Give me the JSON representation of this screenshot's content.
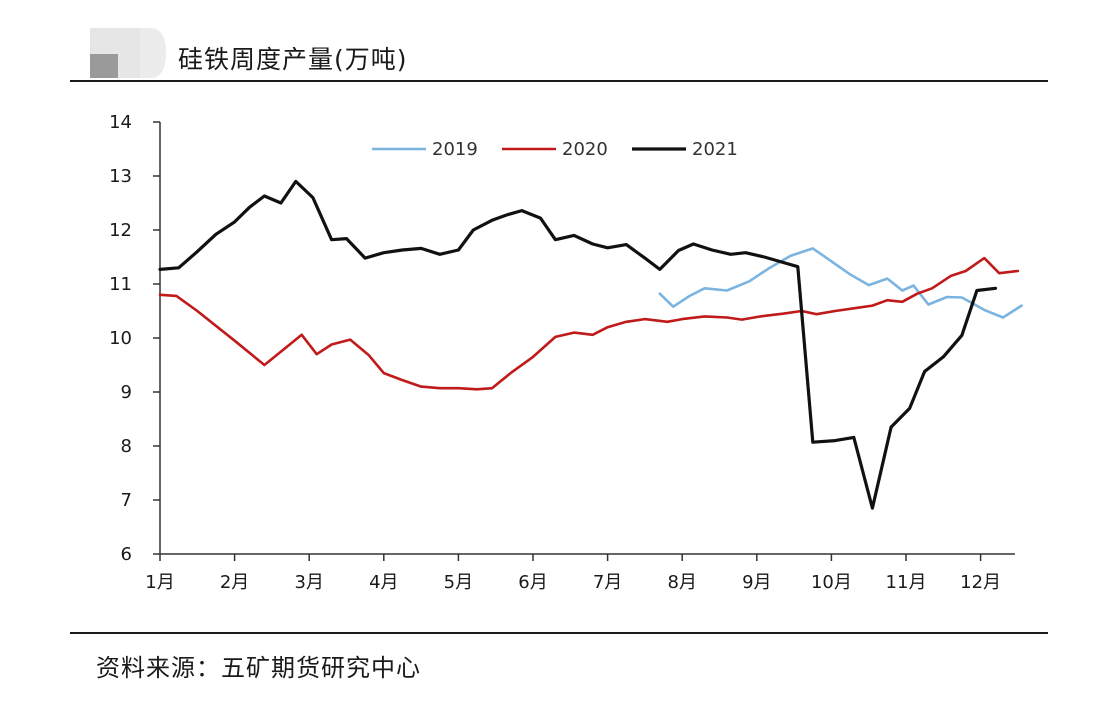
{
  "header": {
    "title": "硅铁周度产量(万吨)"
  },
  "footer": {
    "source": "资料来源：五矿期货研究中心"
  },
  "chart_data": {
    "type": "line",
    "title": "硅铁周度产量(万吨)",
    "xlabel": "",
    "ylabel": "",
    "ylim": [
      6,
      14
    ],
    "yticks": [
      6,
      7,
      8,
      9,
      10,
      11,
      12,
      13,
      14
    ],
    "xticks": [
      "1月",
      "2月",
      "3月",
      "4月",
      "5月",
      "6月",
      "7月",
      "8月",
      "9月",
      "10月",
      "11月",
      "12月"
    ],
    "x_unit": "month (1 = start of 1月)",
    "legend_position": "top",
    "grid": false,
    "series": [
      {
        "name": "2019",
        "color": "#7cb4e0",
        "x": [
          7.7,
          7.88,
          8.1,
          8.3,
          8.6,
          8.9,
          9.15,
          9.45,
          9.75,
          10.0,
          10.25,
          10.5,
          10.75,
          10.95,
          11.1,
          11.3,
          11.55,
          11.75,
          12.05,
          12.3,
          12.55
        ],
        "y": [
          10.82,
          10.58,
          10.78,
          10.92,
          10.88,
          11.05,
          11.28,
          11.52,
          11.66,
          11.42,
          11.18,
          10.98,
          11.1,
          10.88,
          10.97,
          10.62,
          10.76,
          10.75,
          10.52,
          10.38,
          10.6
        ]
      },
      {
        "name": "2020",
        "color": "#c01a1a",
        "x": [
          1.0,
          1.22,
          1.5,
          2.0,
          2.4,
          2.65,
          2.9,
          3.1,
          3.3,
          3.55,
          3.8,
          4.0,
          4.25,
          4.5,
          4.75,
          5.0,
          5.25,
          5.45,
          5.7,
          6.0,
          6.3,
          6.55,
          6.8,
          7.0,
          7.25,
          7.5,
          7.8,
          8.0,
          8.3,
          8.6,
          8.8,
          9.05,
          9.35,
          9.6,
          9.8,
          10.05,
          10.3,
          10.55,
          10.75,
          10.95,
          11.15,
          11.35,
          11.6,
          11.8,
          12.05,
          12.25,
          12.5
        ],
        "y": [
          10.8,
          10.78,
          10.5,
          9.95,
          9.5,
          9.78,
          10.06,
          9.7,
          9.88,
          9.97,
          9.68,
          9.35,
          9.22,
          9.1,
          9.07,
          9.07,
          9.05,
          9.07,
          9.35,
          9.65,
          10.02,
          10.1,
          10.06,
          10.2,
          10.3,
          10.35,
          10.3,
          10.35,
          10.4,
          10.38,
          10.34,
          10.4,
          10.45,
          10.5,
          10.44,
          10.5,
          10.55,
          10.6,
          10.7,
          10.67,
          10.82,
          10.92,
          11.15,
          11.24,
          11.48,
          11.2,
          11.24
        ]
      },
      {
        "name": "2021",
        "color": "#111111",
        "x": [
          1.0,
          1.25,
          1.5,
          1.75,
          2.0,
          2.2,
          2.4,
          2.62,
          2.82,
          3.05,
          3.3,
          3.5,
          3.75,
          4.0,
          4.25,
          4.5,
          4.75,
          5.0,
          5.2,
          5.45,
          5.65,
          5.85,
          6.1,
          6.3,
          6.55,
          6.8,
          7.0,
          7.25,
          7.5,
          7.7,
          7.95,
          8.15,
          8.4,
          8.65,
          8.85,
          9.1,
          9.35,
          9.55,
          9.75,
          10.05,
          10.3,
          10.55,
          10.8,
          11.05,
          11.25,
          11.5,
          11.75,
          11.95,
          12.2
        ],
        "y": [
          11.27,
          11.3,
          11.6,
          11.92,
          12.15,
          12.42,
          12.63,
          12.5,
          12.9,
          12.6,
          11.82,
          11.84,
          11.48,
          11.58,
          11.63,
          11.66,
          11.55,
          11.63,
          12.0,
          12.18,
          12.28,
          12.36,
          12.22,
          11.82,
          11.9,
          11.74,
          11.67,
          11.73,
          11.48,
          11.27,
          11.62,
          11.74,
          11.63,
          11.55,
          11.58,
          11.5,
          11.4,
          11.32,
          8.07,
          8.1,
          8.16,
          6.85,
          8.35,
          8.7,
          9.38,
          9.65,
          10.05,
          10.88,
          10.92
        ]
      }
    ]
  }
}
